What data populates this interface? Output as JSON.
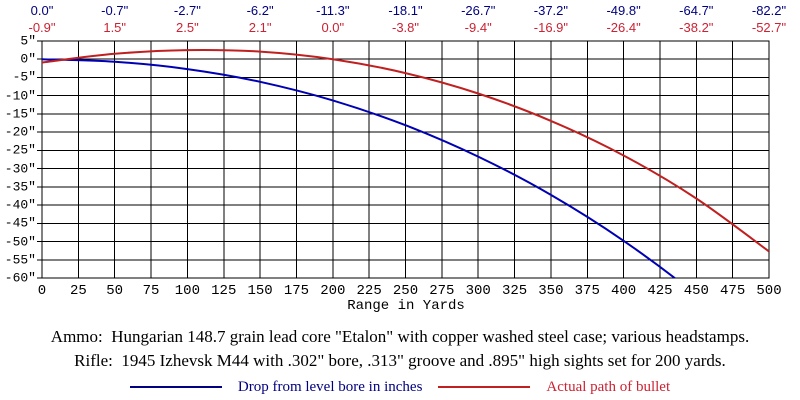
{
  "colors": {
    "background": "#ffffff",
    "grid": "#000000",
    "blue_curve": "#0000b4",
    "blue_text": "#000080",
    "red_curve": "#c02020",
    "red_text": "#cc2233"
  },
  "chart_data": {
    "type": "line",
    "title": "",
    "xlabel": "Range in Yards",
    "ylabel": "",
    "xlim": [
      0,
      500
    ],
    "ylim": [
      -60,
      5
    ],
    "grid": true,
    "legend_position": "bottom",
    "x_ticks": [
      0,
      25,
      50,
      75,
      100,
      125,
      150,
      175,
      200,
      225,
      250,
      275,
      300,
      325,
      350,
      375,
      400,
      425,
      450,
      475,
      500
    ],
    "y_ticks": [
      5,
      0,
      -5,
      -10,
      -15,
      -20,
      -25,
      -30,
      -35,
      -40,
      -45,
      -50,
      -55,
      -60
    ],
    "y_tick_labels": [
      "5\"",
      "0\"",
      "-5\"",
      "-10\"",
      "-15\"",
      "-20\"",
      "-25\"",
      "-30\"",
      "-35\"",
      "-40\"",
      "-45\"",
      "-50\"",
      "-55\"",
      "-60\""
    ],
    "x": [
      0,
      50,
      100,
      150,
      200,
      250,
      300,
      350,
      400,
      450,
      500
    ],
    "series": [
      {
        "name": "Drop from level bore in inches",
        "color_key": "blue",
        "values": [
          0.0,
          -0.7,
          -2.7,
          -6.2,
          -11.3,
          -18.1,
          -26.7,
          -37.2,
          -49.8,
          -64.7,
          -82.2
        ],
        "point_labels": [
          "0.0\"",
          "-0.7\"",
          "-2.7\"",
          "-6.2\"",
          "-11.3\"",
          "-18.1\"",
          "-26.7\"",
          "-37.2\"",
          "-49.8\"",
          "-64.7\"",
          "-82.2\""
        ]
      },
      {
        "name": "Actual path of bullet",
        "color_key": "red",
        "values": [
          -0.9,
          1.5,
          2.5,
          2.1,
          0.0,
          -3.8,
          -9.4,
          -16.9,
          -26.4,
          -38.2,
          -52.7
        ],
        "point_labels": [
          "-0.9\"",
          "1.5\"",
          "2.5\"",
          "2.1\"",
          "0.0\"",
          "-3.8\"",
          "-9.4\"",
          "-16.9\"",
          "-26.4\"",
          "-38.2\"",
          "-52.7\""
        ]
      }
    ]
  },
  "footer": {
    "ammo_line": "Ammo:  Hungarian 148.7 grain lead core \"Etalon\" with copper washed steel case; various headstamps.",
    "rifle_line": "Rifle:  1945 Izhevsk M44 with .302\" bore, .313\" groove and .895\" high sights set for 200 yards."
  },
  "legend": {
    "items": [
      {
        "label": "Drop from level bore in inches",
        "color_key": "blue"
      },
      {
        "label": "Actual path of bullet",
        "color_key": "red"
      }
    ]
  }
}
